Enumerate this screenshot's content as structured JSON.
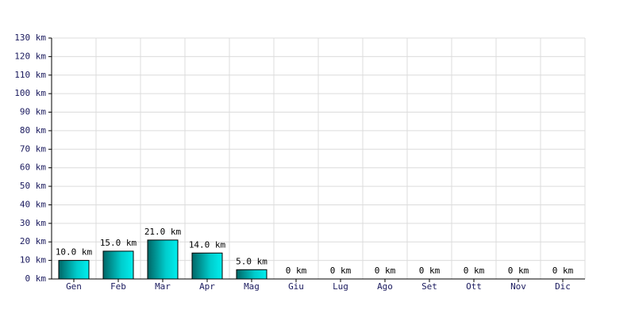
{
  "chart_data": {
    "type": "bar",
    "categories": [
      "Gen",
      "Feb",
      "Mar",
      "Apr",
      "Mag",
      "Giu",
      "Lug",
      "Ago",
      "Set",
      "Ott",
      "Nov",
      "Dic"
    ],
    "values": [
      10,
      15,
      21,
      14,
      5,
      0,
      0,
      0,
      0,
      0,
      0,
      0
    ],
    "value_labels": [
      "10.0 km",
      "15.0 km",
      "21.0 km",
      "14.0 km",
      "5.0 km",
      "0 km",
      "0 km",
      "0 km",
      "0 km",
      "0 km",
      "0 km",
      "0 km"
    ],
    "color": "#00cccc",
    "ylim": [
      0,
      130
    ],
    "yticks": [
      {
        "value": 0,
        "label": "0 km"
      },
      {
        "value": 10,
        "label": "10 km"
      },
      {
        "value": 20,
        "label": "20 km"
      },
      {
        "value": 30,
        "label": "30 km"
      },
      {
        "value": 40,
        "label": "40 km"
      },
      {
        "value": 50,
        "label": "50 km"
      },
      {
        "value": 60,
        "label": "60 km"
      },
      {
        "value": 70,
        "label": "70 km"
      },
      {
        "value": 80,
        "label": "80 km"
      },
      {
        "value": 90,
        "label": "90 km"
      },
      {
        "value": 100,
        "label": "100 km"
      },
      {
        "value": 110,
        "label": "110 km"
      },
      {
        "value": 120,
        "label": "120 km"
      },
      {
        "value": 130,
        "label": "130 km"
      }
    ],
    "grid": true
  }
}
